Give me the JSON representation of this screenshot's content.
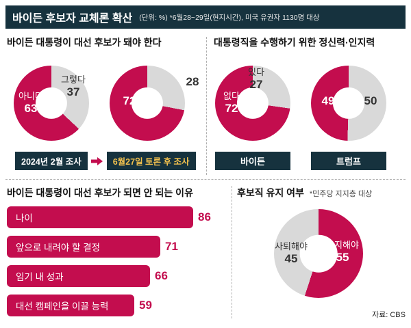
{
  "header": {
    "title": "바이든 후보자 교체론 확산",
    "subtitle": "(단위: %) *6월28~29일(현지시간), 미국 유권자 1130명 대상"
  },
  "colors": {
    "navy": "#16323e",
    "crimson": "#c30d4e",
    "gray": "#d9d9d9",
    "yellow": "#f2c14e"
  },
  "source": "자료: CBS",
  "chart_data": [
    {
      "type": "pie",
      "title": "바이든 대통령이 대선 후보가 돼야 한다",
      "donuts": [
        {
          "caption": "2024년 2월 조사",
          "slices": [
            {
              "label": "그렇다",
              "value": 37,
              "color": "#d9d9d9"
            },
            {
              "label": "아니다",
              "value": 63,
              "color": "#c30d4e"
            }
          ]
        },
        {
          "caption": "6월27일 토론 후 조사",
          "slices": [
            {
              "label": "",
              "value": 28,
              "color": "#d9d9d9"
            },
            {
              "label": "",
              "value": 72,
              "color": "#c30d4e"
            }
          ]
        }
      ]
    },
    {
      "type": "pie",
      "title": "대통령직을 수행하기 위한 정신력·인지력",
      "donuts": [
        {
          "caption": "바이든",
          "slices": [
            {
              "label": "있다",
              "value": 27,
              "color": "#d9d9d9"
            },
            {
              "label": "없다",
              "value": 72,
              "color": "#c30d4e"
            }
          ]
        },
        {
          "caption": "트럼프",
          "slices": [
            {
              "label": "",
              "value": 50,
              "color": "#d9d9d9"
            },
            {
              "label": "",
              "value": 49,
              "color": "#c30d4e"
            }
          ]
        }
      ]
    },
    {
      "type": "bar",
      "title": "바이든 대통령이 대선 후보가 되면 안 되는 이유",
      "categories": [
        "나이",
        "앞으로 내려야 할 결정",
        "임기 내 성과",
        "대선 캠페인을 이끌 능력"
      ],
      "values": [
        86,
        71,
        66,
        59
      ],
      "bar_color": "#c30d4e",
      "xlim": [
        0,
        100
      ],
      "orientation": "horizontal"
    },
    {
      "type": "pie",
      "title": "후보직 유지 여부",
      "note": "*민주당 지지층 대상",
      "slices": [
        {
          "label": "유지해야",
          "value": 55,
          "color": "#c30d4e"
        },
        {
          "label": "사퇴해야",
          "value": 45,
          "color": "#d9d9d9"
        }
      ]
    }
  ]
}
